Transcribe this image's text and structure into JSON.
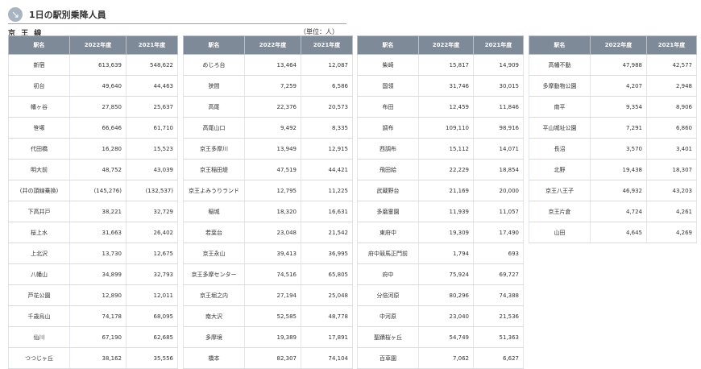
{
  "header": {
    "title": "1日の駅別乗降人員",
    "icon": "arrow-down-right-icon"
  },
  "line_name": "京 王 線",
  "unit_note": "（単位：人）",
  "columns": [
    "駅名",
    "2022年度",
    "2021年度"
  ],
  "blocks": [
    {
      "rows": [
        [
          "新宿",
          "613,639",
          "548,622"
        ],
        [
          "初台",
          "49,640",
          "44,463"
        ],
        [
          "幡ヶ谷",
          "27,850",
          "25,637"
        ],
        [
          "笹塚",
          "66,646",
          "61,710"
        ],
        [
          "代田橋",
          "16,280",
          "15,523"
        ],
        [
          "明大前",
          "48,752",
          "43,039"
        ],
        [
          "(井の頭線乗換)",
          "(145,276)",
          "(132,537)"
        ],
        [
          "下高井戸",
          "38,221",
          "32,729"
        ],
        [
          "桜上水",
          "31,663",
          "26,402"
        ],
        [
          "上北沢",
          "13,730",
          "12,675"
        ],
        [
          "八幡山",
          "34,899",
          "32,793"
        ],
        [
          "芦花公園",
          "12,890",
          "12,011"
        ],
        [
          "千歳烏山",
          "74,178",
          "68,095"
        ],
        [
          "仙川",
          "67,190",
          "62,685"
        ],
        [
          "つつじヶ丘",
          "38,162",
          "35,556"
        ]
      ]
    },
    {
      "rows": [
        [
          "めじろ台",
          "13,464",
          "12,087"
        ],
        [
          "狭間",
          "7,259",
          "6,586"
        ],
        [
          "高尾",
          "22,376",
          "20,573"
        ],
        [
          "高尾山口",
          "9,492",
          "8,335"
        ],
        [
          "京王多摩川",
          "13,949",
          "12,915"
        ],
        [
          "京王稲田堤",
          "47,519",
          "44,421"
        ],
        [
          "京王よみうりランド",
          "12,795",
          "11,225"
        ],
        [
          "稲城",
          "18,320",
          "16,631"
        ],
        [
          "若葉台",
          "23,048",
          "21,542"
        ],
        [
          "京王永山",
          "39,413",
          "36,995"
        ],
        [
          "京王多摩センター",
          "74,516",
          "65,805"
        ],
        [
          "京王堀之内",
          "27,194",
          "25,048"
        ],
        [
          "南大沢",
          "52,585",
          "48,778"
        ],
        [
          "多摩境",
          "19,389",
          "17,891"
        ],
        [
          "橋本",
          "82,307",
          "74,104"
        ]
      ]
    },
    {
      "rows": [
        [
          "柴崎",
          "15,817",
          "14,909"
        ],
        [
          "国領",
          "31,746",
          "30,015"
        ],
        [
          "布田",
          "12,459",
          "11,846"
        ],
        [
          "調布",
          "109,110",
          "98,916"
        ],
        [
          "西調布",
          "15,112",
          "14,071"
        ],
        [
          "飛田給",
          "22,229",
          "18,854"
        ],
        [
          "武蔵野台",
          "21,169",
          "20,000"
        ],
        [
          "多磨霊園",
          "11,939",
          "11,057"
        ],
        [
          "東府中",
          "19,309",
          "17,490"
        ],
        [
          "府中競馬正門前",
          "1,794",
          "693"
        ],
        [
          "府中",
          "75,924",
          "69,727"
        ],
        [
          "分倍河原",
          "80,296",
          "74,388"
        ],
        [
          "中河原",
          "23,040",
          "21,536"
        ],
        [
          "聖蹟桜ヶ丘",
          "54,749",
          "51,363"
        ],
        [
          "百草園",
          "7,062",
          "6,627"
        ]
      ]
    },
    {
      "rows": [
        [
          "高幡不動",
          "47,988",
          "42,577"
        ],
        [
          "多摩動物公園",
          "4,207",
          "2,948"
        ],
        [
          "南平",
          "9,354",
          "8,906"
        ],
        [
          "平山城址公園",
          "7,291",
          "6,860"
        ],
        [
          "長沼",
          "3,570",
          "3,401"
        ],
        [
          "北野",
          "19,438",
          "18,307"
        ],
        [
          "京王八王子",
          "46,932",
          "43,203"
        ],
        [
          "京王片倉",
          "4,724",
          "4,261"
        ],
        [
          "山田",
          "4,645",
          "4,269"
        ]
      ]
    }
  ]
}
